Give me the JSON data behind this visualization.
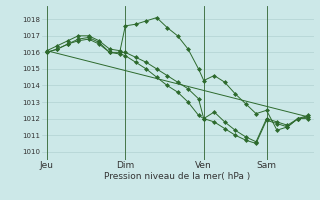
{
  "background_color": "#cce8e8",
  "grid_color": "#aacccc",
  "line_color": "#2d6a2d",
  "marker_color": "#2d6a2d",
  "xlabel": "Pression niveau de la mer( hPa )",
  "ylim": [
    1009.5,
    1018.8
  ],
  "yticks": [
    1010,
    1011,
    1012,
    1013,
    1014,
    1015,
    1016,
    1017,
    1018
  ],
  "xtick_labels": [
    "Jeu",
    "Dim",
    "Ven",
    "Sam"
  ],
  "xtick_positions": [
    0,
    30,
    60,
    84
  ],
  "vlines": [
    0,
    30,
    60,
    84
  ],
  "xlim": [
    -2,
    102
  ],
  "series1": {
    "x": [
      0,
      4,
      8,
      12,
      16,
      20,
      24,
      28,
      30,
      34,
      38,
      42,
      46,
      50,
      54,
      58,
      60,
      64,
      68,
      72,
      76,
      80,
      84,
      88,
      92,
      96,
      100
    ],
    "y": [
      1016.1,
      1016.4,
      1016.7,
      1017.0,
      1017.0,
      1016.7,
      1016.2,
      1016.1,
      1017.6,
      1017.7,
      1017.9,
      1018.1,
      1017.5,
      1017.0,
      1016.2,
      1015.0,
      1014.3,
      1014.6,
      1014.2,
      1013.5,
      1012.9,
      1012.3,
      1012.5,
      1011.3,
      1011.5,
      1012.0,
      1012.2
    ]
  },
  "series2": {
    "x": [
      0,
      4,
      8,
      12,
      16,
      20,
      24,
      28,
      30,
      34,
      38,
      42,
      46,
      50,
      54,
      58,
      60,
      64,
      68,
      72,
      76,
      80,
      84,
      88,
      92,
      96,
      100
    ],
    "y": [
      1016.0,
      1016.2,
      1016.5,
      1016.8,
      1016.9,
      1016.6,
      1016.0,
      1016.0,
      1016.0,
      1015.7,
      1015.4,
      1015.0,
      1014.6,
      1014.2,
      1013.8,
      1013.2,
      1012.0,
      1012.4,
      1011.8,
      1011.3,
      1010.9,
      1010.6,
      1012.0,
      1011.8,
      1011.6,
      1012.0,
      1012.1
    ]
  },
  "series3_line": {
    "x": [
      0,
      100
    ],
    "y": [
      1016.1,
      1012.1
    ]
  },
  "series4": {
    "x": [
      0,
      4,
      8,
      12,
      16,
      20,
      24,
      28,
      30,
      34,
      38,
      42,
      46,
      50,
      54,
      58,
      60,
      64,
      68,
      72,
      76,
      80,
      84,
      88,
      92,
      96,
      100
    ],
    "y": [
      1016.0,
      1016.2,
      1016.5,
      1016.7,
      1016.8,
      1016.5,
      1016.0,
      1015.9,
      1015.8,
      1015.4,
      1015.0,
      1014.5,
      1014.0,
      1013.6,
      1013.0,
      1012.2,
      1012.0,
      1011.8,
      1011.4,
      1011.0,
      1010.7,
      1010.5,
      1011.9,
      1011.7,
      1011.5,
      1012.0,
      1012.0
    ]
  }
}
